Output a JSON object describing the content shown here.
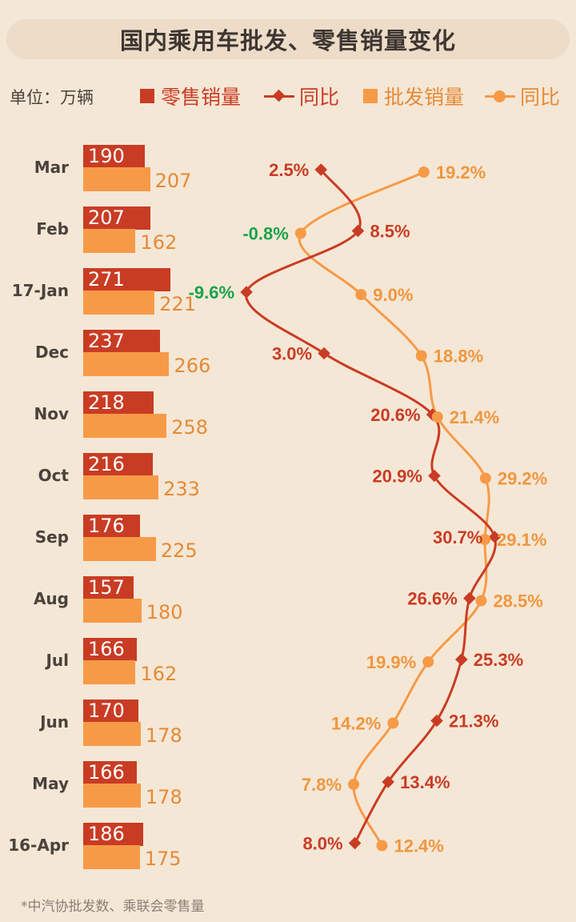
{
  "title": "国内乘用车批发、零售销量变化",
  "legend": {
    "unit": "单位：万辆",
    "retail": "零售销量",
    "retail_yoy": "同比",
    "wholesale": "批发销量",
    "wholesale_yoy": "同比"
  },
  "footnote": "*中汽协批发数、乘联会零售量",
  "colors": {
    "retail": "#c93c24",
    "wholesale": "#f79a47",
    "negative": "#1aa34a"
  },
  "chart_data": {
    "type": "bar",
    "categories": [
      "Mar",
      "Feb",
      "17-Jan",
      "Dec",
      "Nov",
      "Oct",
      "Sep",
      "Aug",
      "Jul",
      "Jun",
      "May",
      "16-Apr"
    ],
    "series": [
      {
        "name": "零售销量",
        "values": [
          190,
          207,
          271,
          237,
          218,
          216,
          176,
          157,
          166,
          170,
          166,
          186
        ]
      },
      {
        "name": "批发销量",
        "values": [
          207,
          162,
          221,
          266,
          258,
          233,
          225,
          180,
          162,
          178,
          178,
          175
        ]
      }
    ],
    "yoy_series": [
      {
        "name": "同比",
        "type": "line",
        "values": [
          2.5,
          8.5,
          -9.6,
          3.0,
          20.6,
          20.9,
          30.7,
          26.6,
          25.3,
          21.3,
          13.4,
          8.0
        ],
        "labels": [
          "2.5%",
          "8.5%",
          "-9.6%",
          "3.0%",
          "20.6%",
          "20.9%",
          "30.7%",
          "26.6%",
          "25.3%",
          "21.3%",
          "13.4%",
          "8.0%"
        ]
      },
      {
        "name": "同比",
        "type": "line",
        "values": [
          19.2,
          -0.8,
          9.0,
          18.8,
          21.4,
          29.2,
          29.1,
          28.5,
          19.9,
          14.2,
          7.8,
          12.4
        ],
        "labels": [
          "19.2%",
          "-0.8%",
          "9.0%",
          "18.8%",
          "21.4%",
          "29.2%",
          "29.1%",
          "28.5%",
          "19.9%",
          "14.2%",
          "7.8%",
          "12.4%"
        ]
      }
    ],
    "bar_unit": "万辆",
    "yoy_unit": "%"
  }
}
